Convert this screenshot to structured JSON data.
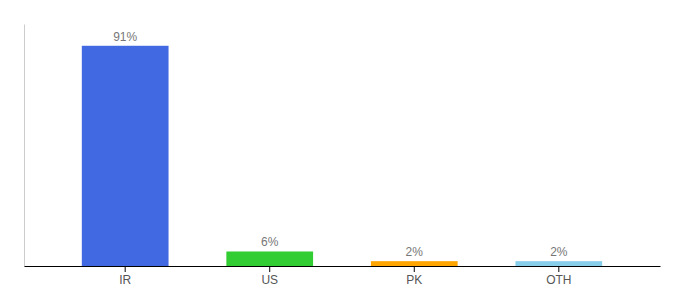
{
  "chart_data": {
    "type": "bar",
    "categories": [
      "IR",
      "US",
      "PK",
      "OTH"
    ],
    "values": [
      91,
      6,
      2,
      2
    ],
    "value_labels": [
      "91%",
      "6%",
      "2%",
      "2%"
    ],
    "colors": [
      "#4169e1",
      "#32cd32",
      "#ffa500",
      "#87ceeb"
    ],
    "ylim": [
      0,
      100
    ],
    "data_labels": true,
    "tick_labels": "x"
  }
}
